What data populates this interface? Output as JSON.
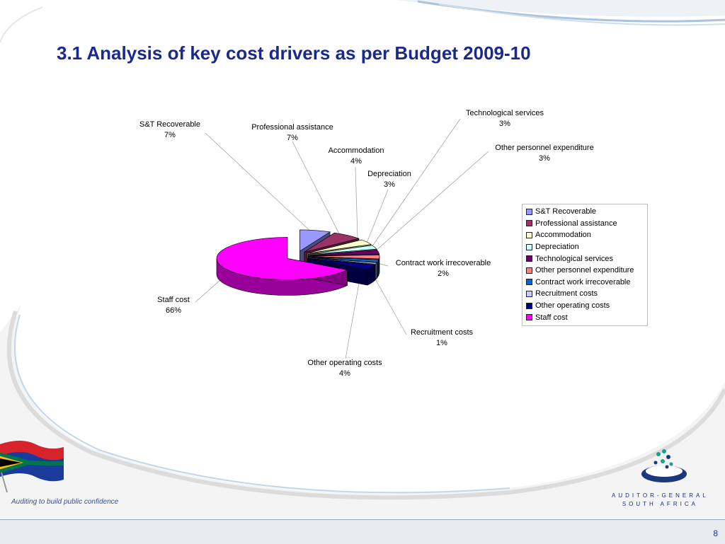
{
  "slide": {
    "title": "3.1  Analysis of key cost drivers as per Budget 2009-10",
    "page_number": "8",
    "tagline": "Auditing to build public confidence",
    "logo_line1": "AUDITOR-GENERAL",
    "logo_line2": "SOUTH AFRICA"
  },
  "chart_data": {
    "type": "pie",
    "style": "3d-exploded",
    "legend_position": "right",
    "slices": [
      {
        "label": "S&T Recoverable",
        "percent": 7,
        "display": "7%",
        "color": "#9999ff"
      },
      {
        "label": "Professional assistance",
        "percent": 7,
        "display": "7%",
        "color": "#993366"
      },
      {
        "label": "Accommodation",
        "percent": 4,
        "display": "4%",
        "color": "#ffffcc"
      },
      {
        "label": "Depreciation",
        "percent": 3,
        "display": "3%",
        "color": "#ccffff"
      },
      {
        "label": "Technological services",
        "percent": 3,
        "display": "3%",
        "color": "#660066"
      },
      {
        "label": "Other personnel expenditure",
        "percent": 3,
        "display": "3%",
        "color": "#ff8080"
      },
      {
        "label": "Contract work irrecoverable",
        "percent": 2,
        "display": "2%",
        "color": "#0066cc"
      },
      {
        "label": "Recruitment costs",
        "percent": 1,
        "display": "1%",
        "color": "#ccccff"
      },
      {
        "label": "Other operating costs",
        "percent": 4,
        "display": "4%",
        "color": "#000080"
      },
      {
        "label": "Staff cost",
        "percent": 66,
        "display": "66%",
        "color": "#ff00ff"
      }
    ]
  }
}
